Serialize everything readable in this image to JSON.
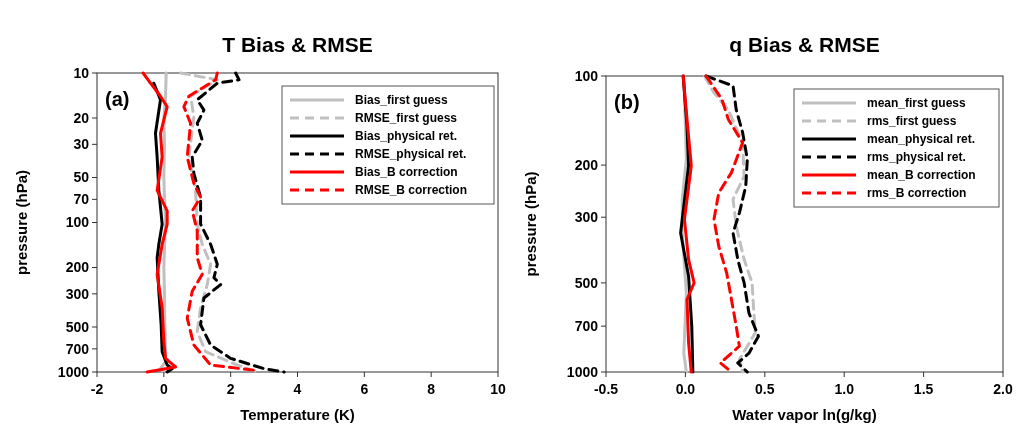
{
  "chart_data": [
    {
      "type": "line",
      "title": "T Bias & RMSE",
      "xlabel": "Temperature (K)",
      "ylabel": "pressure (hPa)",
      "annotations": [
        "(a)"
      ],
      "log": "y",
      "xlim": [
        -2,
        10
      ],
      "xticks": [
        -2,
        0,
        2,
        4,
        6,
        8,
        10
      ],
      "ylim": [
        1000,
        10
      ],
      "yticks": [
        10,
        20,
        30,
        50,
        70,
        100,
        200,
        300,
        500,
        700,
        1000
      ],
      "legend": "top right",
      "grid": false,
      "series": [
        {
          "name": "Bias_first guess",
          "color": "#c0c0c0",
          "line_style": "solid",
          "x": [
            0.07,
            0.05,
            0.0,
            0.02,
            0.0,
            0.02,
            0.05,
            0.02,
            0.0,
            0.02,
            0.03,
            0.05,
            0.05,
            -0.1,
            0.0
          ],
          "values": [
            10,
            15,
            20,
            30,
            50,
            70,
            100,
            150,
            200,
            300,
            500,
            700,
            850,
            950,
            1000
          ]
        },
        {
          "name": "RMSE_first guess",
          "color": "#c0c0c0",
          "line_style": "dashed",
          "x": [
            0.5,
            1.6,
            0.8,
            0.9,
            0.75,
            0.95,
            1.0,
            1.15,
            1.4,
            1.3,
            1.1,
            1.0,
            1.25,
            2.2,
            2.8
          ],
          "values": [
            10,
            11.1,
            14.3,
            19.6,
            36.5,
            61,
            102.6,
            140,
            190,
            260,
            372,
            536,
            731,
            899,
            1000
          ]
        },
        {
          "name": "Bias_physical ret.",
          "color": "#000000",
          "line_style": "solid",
          "x": [
            -0.3,
            -0.1,
            -0.25,
            -0.2,
            -0.15,
            -0.05,
            -0.15,
            -0.2,
            -0.15,
            -0.08,
            -0.05,
            0.1,
            0.25,
            0.1
          ],
          "values": [
            11.7,
            15.1,
            25.3,
            36.5,
            61,
            102.6,
            140,
            172,
            288,
            483,
            731,
            899,
            950,
            1000
          ]
        },
        {
          "name": "RMSE_physical ret.",
          "color": "#000000",
          "line_style": "dashed",
          "x": [
            2.15,
            2.25,
            1.6,
            1.0,
            1.2,
            1.0,
            1.15,
            0.85,
            0.9,
            1.1,
            1.1,
            1.4,
            1.6,
            1.5,
            1.7,
            1.2,
            1.1,
            1.4,
            2.0,
            3.0,
            3.6
          ],
          "values": [
            10,
            11.1,
            11.7,
            15.1,
            17.7,
            21.7,
            28.2,
            36.5,
            47.2,
            67.7,
            102.6,
            140,
            190,
            234,
            260,
            320,
            483,
            660,
            811,
            950,
            1000
          ]
        },
        {
          "name": "Bias_B correction",
          "color": "#ff0000",
          "line_style": "solid",
          "x": [
            -0.62,
            -0.4,
            -0.1,
            0.1,
            -0.1,
            -0.05,
            -0.2,
            0.1,
            0.1,
            -0.05,
            -0.2,
            -0.05,
            0.0,
            0.05,
            0.35,
            -0.2,
            -0.5
          ],
          "values": [
            10,
            11.7,
            14.3,
            16.8,
            25.3,
            36.5,
            61,
            83.5,
            102.6,
            140,
            222,
            372,
            626,
            811,
            925,
            973,
            1000
          ]
        },
        {
          "name": "RMSE_B correction",
          "color": "#ff0000",
          "line_style": "dashed",
          "x": [
            1.6,
            1.55,
            0.75,
            0.6,
            0.8,
            0.7,
            0.9,
            1.1,
            0.85,
            1.0,
            1.0,
            1.15,
            0.85,
            0.7,
            0.9,
            1.4,
            2.7
          ],
          "values": [
            10,
            11.1,
            14.3,
            16.8,
            21.7,
            36.5,
            55,
            67.7,
            83.5,
            113.6,
            172,
            222,
            288,
            436,
            660,
            899,
            973
          ]
        }
      ]
    },
    {
      "type": "line",
      "title": "q Bias & RMSE",
      "xlabel": "Water vapor ln(g/kg)",
      "ylabel": "pressure (hPa)",
      "annotations": [
        "(b)"
      ],
      "log": "y",
      "xlim": [
        -0.5,
        2.0
      ],
      "xticks": [
        {
          "value": -0.5,
          "label": "-0.5"
        },
        {
          "value": 0,
          "label": "0.0"
        },
        {
          "value": 0.5,
          "label": "0.5"
        },
        {
          "value": 1,
          "label": "1.0"
        },
        {
          "value": 1.5,
          "label": "1.5"
        },
        {
          "value": 2,
          "label": "2.0"
        }
      ],
      "ylim": [
        1000,
        100
      ],
      "yticks": [
        100,
        200,
        300,
        500,
        700,
        1000
      ],
      "legend": "top right",
      "grid": false,
      "series": [
        {
          "name": "mean_first guess",
          "color": "#c0c0c0",
          "line_style": "solid",
          "x": [
            -0.01,
            0.006,
            -0.02,
            -0.02,
            0.006,
            -0.01,
            0.006
          ],
          "values": [
            100,
            191,
            261,
            339,
            541,
            864,
            1000
          ]
        },
        {
          "name": "rms_first guess",
          "color": "#c0c0c0",
          "line_style": "dashed",
          "x": [
            0.12,
            0.18,
            0.27,
            0.36,
            0.37,
            0.3,
            0.32,
            0.37,
            0.42,
            0.43,
            0.44,
            0.34,
            0.36
          ],
          "values": [
            100,
            114,
            130,
            168,
            218,
            261,
            321,
            417,
            500,
            616,
            737,
            907,
            1000
          ]
        },
        {
          "name": "mean_physical ret.",
          "color": "#000000",
          "line_style": "solid",
          "x": [
            -0.014,
            0.01,
            0.02,
            -0.03,
            0.02,
            0.04,
            0.047
          ],
          "values": [
            100,
            148,
            201,
            339,
            475,
            700,
            1000
          ]
        },
        {
          "name": "rms_physical ret.",
          "color": "#000000",
          "line_style": "dashed",
          "x": [
            0.13,
            0.3,
            0.32,
            0.36,
            0.39,
            0.38,
            0.34,
            0.3,
            0.33,
            0.37,
            0.4,
            0.46,
            0.4,
            0.33,
            0.39
          ],
          "values": [
            100,
            108,
            130,
            155,
            191,
            236,
            290,
            339,
            417,
            500,
            632,
            757,
            864,
            932,
            1000
          ]
        },
        {
          "name": "mean_B correction",
          "color": "#ff0000",
          "line_style": "solid",
          "x": [
            -0.014,
            0.014,
            0.037,
            -0.006,
            0.02,
            0.055,
            0.01,
            0.02,
            0.037
          ],
          "values": [
            100,
            148,
            201,
            305,
            417,
            500,
            569,
            797,
            1000
          ]
        },
        {
          "name": "rms_B correction",
          "color": "#ff0000",
          "line_style": "dashed",
          "x": [
            0.13,
            0.23,
            0.27,
            0.36,
            0.29,
            0.21,
            0.18,
            0.21,
            0.26,
            0.29,
            0.32,
            0.34,
            0.22,
            0.29
          ],
          "values": [
            100,
            120,
            140,
            168,
            212,
            248,
            305,
            376,
            463,
            569,
            700,
            818,
            932,
            1000
          ]
        }
      ]
    }
  ]
}
